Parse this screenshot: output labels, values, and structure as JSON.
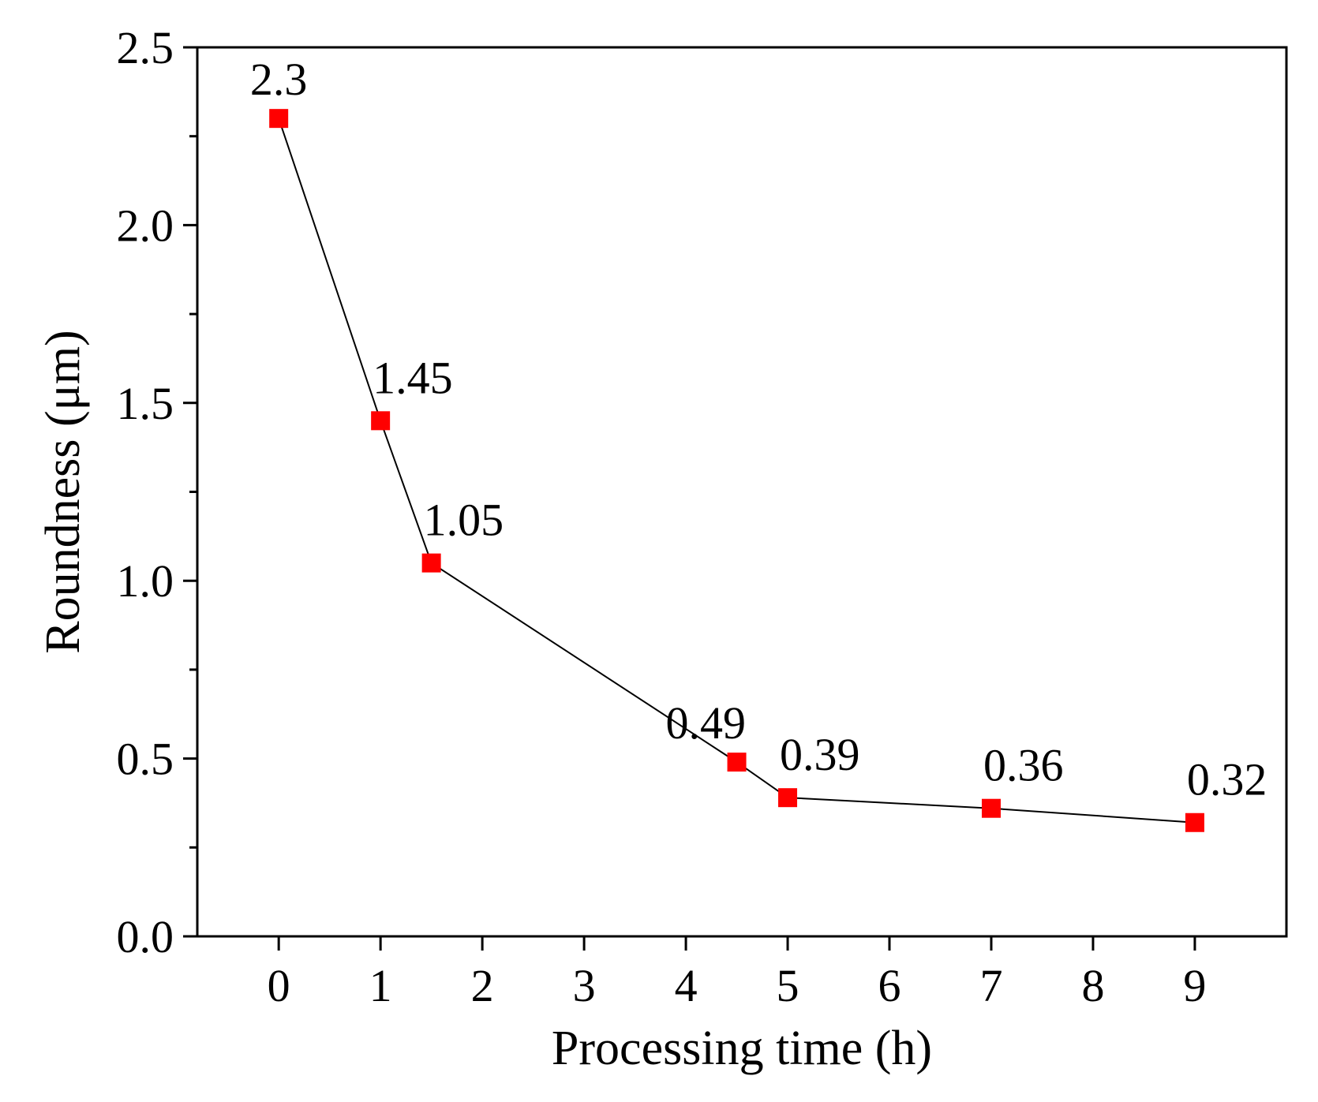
{
  "chart_data": {
    "type": "line",
    "title": "",
    "xlabel": "Processing time (h)",
    "ylabel": "Roundness (μm)",
    "x_ticks": [
      "0",
      "1",
      "2",
      "3",
      "4",
      "5",
      "6",
      "7",
      "8",
      "9"
    ],
    "y_ticks": [
      "0.0",
      "0.5",
      "1.0",
      "1.5",
      "2.0",
      "2.5"
    ],
    "xlim": [
      -0.8,
      9.9
    ],
    "ylim": [
      0,
      2.5
    ],
    "grid": false,
    "series": [
      {
        "name": "Roundness",
        "marker": "square",
        "marker_color": "#ff0000",
        "line_color": "#000000",
        "x": [
          0,
          1,
          1.5,
          4.5,
          5,
          7,
          9
        ],
        "values": [
          2.3,
          1.45,
          1.05,
          0.49,
          0.39,
          0.36,
          0.32
        ],
        "labels": [
          "2.3",
          "1.45",
          "1.05",
          "0.49",
          "0.39",
          "0.36",
          "0.32"
        ]
      }
    ]
  }
}
